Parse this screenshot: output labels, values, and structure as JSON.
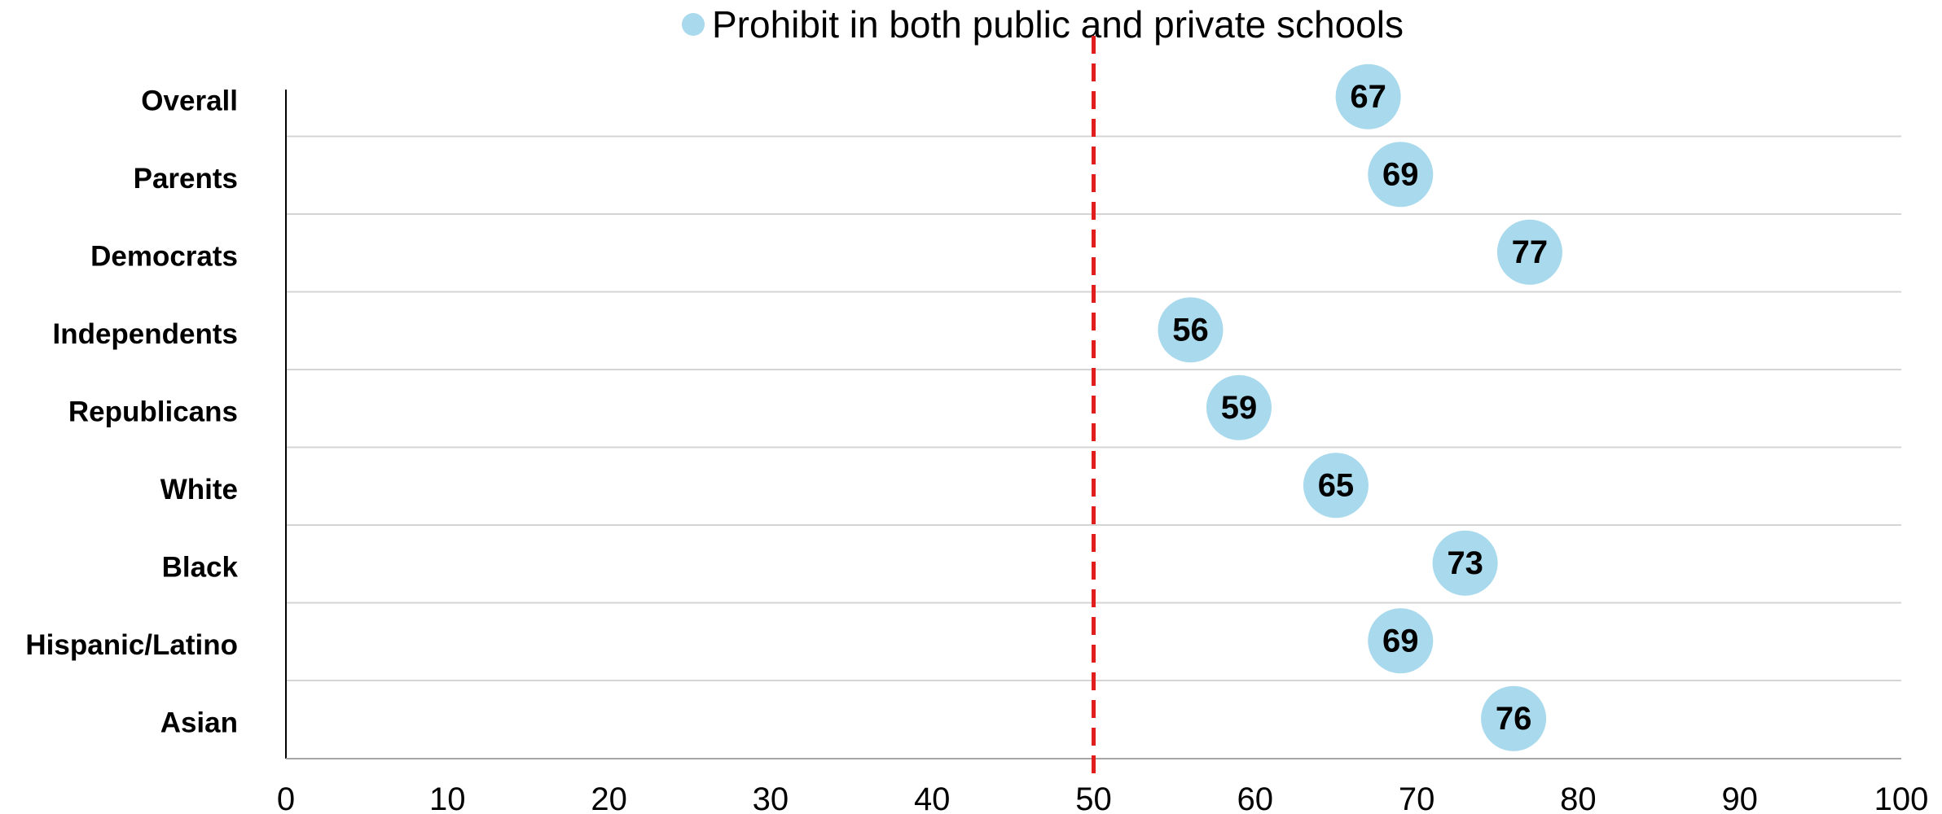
{
  "chart_data": {
    "type": "scatter",
    "title": "",
    "xlabel": "",
    "ylabel": "",
    "categories": [
      "Overall",
      "Parents",
      "Democrats",
      "Independents",
      "Republicans",
      "White",
      "Black",
      "Hispanic/Latino",
      "Asian"
    ],
    "series": [
      {
        "name": "Prohibit in both public and private schools",
        "values": [
          67,
          69,
          77,
          56,
          59,
          65,
          73,
          69,
          76
        ],
        "color": "#a8d9ec"
      }
    ],
    "xlim": [
      0,
      100
    ],
    "xticks": [
      "0",
      "10",
      "20",
      "30",
      "40",
      "50",
      "60",
      "70",
      "80",
      "90",
      "100"
    ],
    "reference_line": {
      "x": 50,
      "color": "#e01e1e",
      "style": "dashed"
    },
    "grid": {
      "horizontal": true,
      "vertical": false
    },
    "legend": "top-center"
  }
}
